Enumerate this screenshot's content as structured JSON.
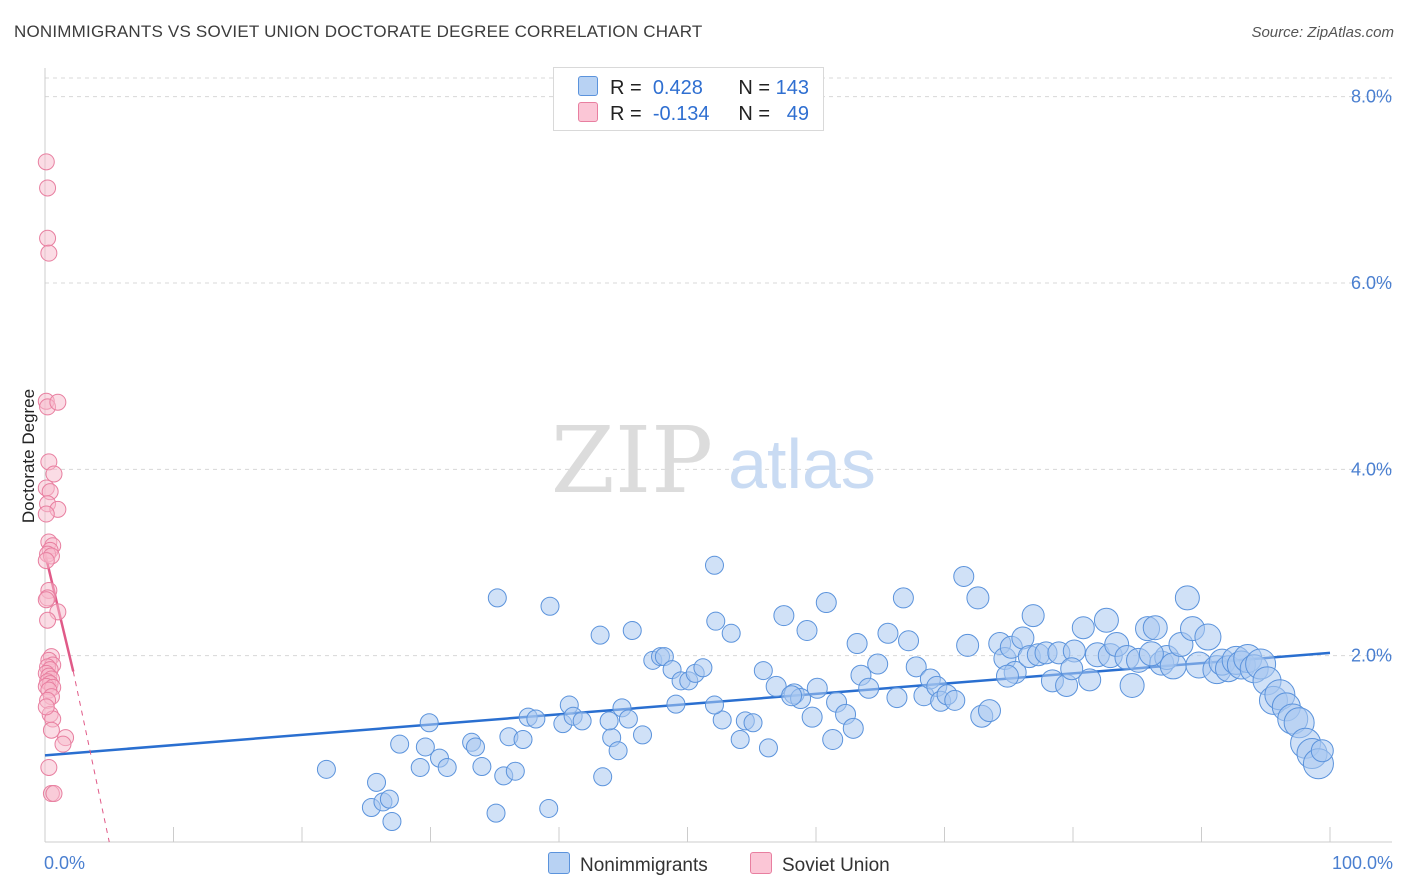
{
  "title": "NONIMMIGRANTS VS SOVIET UNION DOCTORATE DEGREE CORRELATION CHART",
  "source": "Source: ZipAtlas.com",
  "watermark": {
    "zip": "ZIP",
    "atlas": "atlas"
  },
  "legend": {
    "rows": [
      {
        "r_label": "R =",
        "r_value": "0.428",
        "n_label": "N =",
        "n_value": "143"
      },
      {
        "r_label": "R =",
        "r_value": "-0.134",
        "n_label": "N =",
        "n_value": "49"
      }
    ]
  },
  "bottom_legend": {
    "series_a": "Nonimmigrants",
    "series_b": "Soviet Union"
  },
  "colors": {
    "blue_fill": "#a9c8f0",
    "blue_stroke": "#5b93dc",
    "blue_line": "#2a6fd0",
    "pink_fill": "#f7b9cc",
    "pink_stroke": "#e87fa0",
    "pink_line": "#e05a88",
    "grid": "#d8d8d8",
    "axis_text": "#4a7fd0"
  },
  "chart_data": {
    "type": "scatter",
    "title": "NONIMMIGRANTS VS SOVIET UNION DOCTORATE DEGREE CORRELATION CHART",
    "xlabel": "",
    "ylabel": "Doctorate Degree",
    "xlim": [
      0,
      100
    ],
    "ylim": [
      0,
      8.2
    ],
    "x_tick_labels": [
      "0.0%",
      "100.0%"
    ],
    "y_ticks": [
      2,
      4,
      6,
      8
    ],
    "y_tick_labels": [
      "2.0%",
      "4.0%",
      "6.0%",
      "8.0%"
    ],
    "series": [
      {
        "name": "Nonimmigrants",
        "r": 0.428,
        "n": 143,
        "trend": [
          [
            0,
            0.93
          ],
          [
            100,
            2.03
          ]
        ],
        "points": [
          [
            21.9,
            0.78,
            9
          ],
          [
            25.4,
            0.37,
            9
          ],
          [
            25.8,
            0.64,
            9
          ],
          [
            26.3,
            0.43,
            9
          ],
          [
            26.8,
            0.46,
            9
          ],
          [
            27,
            0.22,
            9
          ],
          [
            27.6,
            1.05,
            9
          ],
          [
            29.2,
            0.8,
            9
          ],
          [
            29.6,
            1.02,
            9
          ],
          [
            29.9,
            1.28,
            9
          ],
          [
            30.7,
            0.9,
            9
          ],
          [
            31.3,
            0.8,
            9
          ],
          [
            33.2,
            1.07,
            9
          ],
          [
            34,
            0.81,
            9
          ],
          [
            35.1,
            0.31,
            9
          ],
          [
            35.2,
            2.62,
            9
          ],
          [
            35.7,
            0.71,
            9
          ],
          [
            36.1,
            1.13,
            9
          ],
          [
            36.6,
            0.76,
            9
          ],
          [
            37.2,
            1.1,
            9
          ],
          [
            37.6,
            1.34,
            9
          ],
          [
            38.2,
            1.32,
            9
          ],
          [
            39.2,
            0.36,
            9
          ],
          [
            39.3,
            2.53,
            9
          ],
          [
            40.3,
            1.27,
            9
          ],
          [
            40.8,
            1.47,
            9
          ],
          [
            41.1,
            1.35,
            9
          ],
          [
            41.8,
            1.3,
            9
          ],
          [
            43.2,
            2.22,
            9
          ],
          [
            43.4,
            0.7,
            9
          ],
          [
            44.1,
            1.12,
            9
          ],
          [
            44.6,
            0.98,
            9
          ],
          [
            44.9,
            1.44,
            9
          ],
          [
            45.4,
            1.32,
            9
          ],
          [
            45.7,
            2.27,
            9
          ],
          [
            46.5,
            1.15,
            9
          ],
          [
            47.3,
            1.95,
            9
          ],
          [
            47.9,
            1.99,
            9
          ],
          [
            48.2,
            1.99,
            9
          ],
          [
            48.8,
            1.85,
            9
          ],
          [
            49.1,
            1.48,
            9
          ],
          [
            49.5,
            1.73,
            9
          ],
          [
            50.1,
            1.73,
            9
          ],
          [
            50.6,
            1.81,
            9
          ],
          [
            51.2,
            1.87,
            9
          ],
          [
            52.1,
            2.97,
            9
          ],
          [
            52.2,
            2.37,
            9
          ],
          [
            52.7,
            1.31,
            9
          ],
          [
            53.4,
            2.24,
            9
          ],
          [
            54.1,
            1.1,
            9
          ],
          [
            54.5,
            1.3,
            9
          ],
          [
            55.1,
            1.28,
            9
          ],
          [
            55.9,
            1.84,
            9
          ],
          [
            56.3,
            1.01,
            9
          ],
          [
            56.9,
            1.67,
            10
          ],
          [
            57.5,
            2.43,
            10
          ],
          [
            58.3,
            1.59,
            10
          ],
          [
            58.8,
            1.54,
            10
          ],
          [
            59.3,
            2.27,
            10
          ],
          [
            59.7,
            1.34,
            10
          ],
          [
            60.1,
            1.65,
            10
          ],
          [
            60.8,
            2.57,
            10
          ],
          [
            61.3,
            1.1,
            10
          ],
          [
            61.6,
            1.5,
            10
          ],
          [
            62.3,
            1.37,
            10
          ],
          [
            63.2,
            2.13,
            10
          ],
          [
            63.5,
            1.79,
            10
          ],
          [
            64.1,
            1.65,
            10
          ],
          [
            64.8,
            1.91,
            10
          ],
          [
            65.6,
            2.24,
            10
          ],
          [
            66.3,
            1.55,
            10
          ],
          [
            66.8,
            2.62,
            10
          ],
          [
            67.2,
            2.16,
            10
          ],
          [
            67.8,
            1.88,
            10
          ],
          [
            68.4,
            1.57,
            10
          ],
          [
            68.9,
            1.75,
            10
          ],
          [
            69.4,
            1.67,
            10
          ],
          [
            69.7,
            1.51,
            10
          ],
          [
            70.2,
            1.58,
            10
          ],
          [
            70.8,
            1.52,
            10
          ],
          [
            71.5,
            2.85,
            10
          ],
          [
            71.8,
            2.11,
            11
          ],
          [
            72.6,
            2.62,
            11
          ],
          [
            72.9,
            1.35,
            11
          ],
          [
            73.5,
            1.41,
            11
          ],
          [
            74.3,
            2.13,
            11
          ],
          [
            74.7,
            1.97,
            11
          ],
          [
            75.2,
            2.09,
            11
          ],
          [
            75.5,
            1.82,
            11
          ],
          [
            76.1,
            2.19,
            11
          ],
          [
            76.6,
            1.99,
            11
          ],
          [
            76.9,
            2.43,
            11
          ],
          [
            77.3,
            2.01,
            11
          ],
          [
            77.9,
            2.03,
            11
          ],
          [
            78.4,
            1.73,
            11
          ],
          [
            78.9,
            2.03,
            11
          ],
          [
            79.5,
            1.68,
            11
          ],
          [
            80.1,
            2.05,
            11
          ],
          [
            80.8,
            2.3,
            11
          ],
          [
            81.3,
            1.74,
            11
          ],
          [
            81.9,
            2.01,
            12
          ],
          [
            82.6,
            2.38,
            12
          ],
          [
            82.9,
            2.0,
            12
          ],
          [
            83.4,
            2.12,
            12
          ],
          [
            84.2,
            1.98,
            12
          ],
          [
            84.6,
            1.68,
            12
          ],
          [
            85.1,
            1.95,
            12
          ],
          [
            85.8,
            2.29,
            12
          ],
          [
            86.4,
            2.3,
            12
          ],
          [
            86.9,
            1.92,
            12
          ],
          [
            87.3,
            1.98,
            12
          ],
          [
            87.8,
            1.89,
            13
          ],
          [
            88.4,
            2.12,
            12
          ],
          [
            88.9,
            2.62,
            12
          ],
          [
            89.3,
            2.29,
            12
          ],
          [
            89.8,
            1.9,
            13
          ],
          [
            90.5,
            2.2,
            13
          ],
          [
            91.2,
            1.85,
            14
          ],
          [
            91.6,
            1.93,
            13
          ],
          [
            92.1,
            1.86,
            13
          ],
          [
            92.7,
            1.95,
            14
          ],
          [
            93.1,
            1.9,
            14
          ],
          [
            93.6,
            1.97,
            14
          ],
          [
            94.1,
            1.86,
            14
          ],
          [
            94.6,
            1.91,
            15
          ],
          [
            95.1,
            1.73,
            14
          ],
          [
            95.6,
            1.52,
            14
          ],
          [
            96.1,
            1.58,
            15
          ],
          [
            96.6,
            1.45,
            14
          ],
          [
            97.1,
            1.32,
            15
          ],
          [
            97.6,
            1.28,
            15
          ],
          [
            98.1,
            1.06,
            15
          ],
          [
            98.6,
            0.95,
            15
          ],
          [
            99.1,
            0.84,
            15
          ],
          [
            99.4,
            0.98,
            11
          ],
          [
            52.1,
            1.47,
            9
          ],
          [
            33.5,
            1.02,
            9
          ],
          [
            43.9,
            1.3,
            9
          ],
          [
            58.1,
            1.57,
            10
          ],
          [
            62.9,
            1.22,
            10
          ],
          [
            74.9,
            1.78,
            11
          ],
          [
            79.9,
            1.86,
            11
          ],
          [
            86.1,
            2.02,
            12
          ]
        ]
      },
      {
        "name": "Soviet Union",
        "r": -0.134,
        "n": 49,
        "trend": [
          [
            0,
            3.1
          ],
          [
            2.2,
            1.83
          ]
        ],
        "trend_extension": [
          [
            2.2,
            1.83
          ],
          [
            5.0,
            0.0
          ]
        ],
        "points": [
          [
            0.1,
            7.3
          ],
          [
            0.2,
            7.02
          ],
          [
            0.2,
            6.48
          ],
          [
            0.3,
            6.32
          ],
          [
            0.1,
            4.73
          ],
          [
            0.2,
            4.67
          ],
          [
            1.0,
            4.72
          ],
          [
            0.3,
            4.08
          ],
          [
            0.7,
            3.95
          ],
          [
            0.1,
            3.8
          ],
          [
            0.4,
            3.76
          ],
          [
            0.2,
            3.63
          ],
          [
            1.0,
            3.57
          ],
          [
            0.1,
            3.52
          ],
          [
            0.3,
            3.22
          ],
          [
            0.6,
            3.18
          ],
          [
            0.4,
            3.13
          ],
          [
            0.2,
            3.09
          ],
          [
            0.5,
            3.07
          ],
          [
            0.1,
            3.02
          ],
          [
            0.3,
            2.7
          ],
          [
            0.2,
            2.62
          ],
          [
            0.1,
            2.6
          ],
          [
            1.0,
            2.47
          ],
          [
            0.2,
            2.38
          ],
          [
            0.5,
            1.99
          ],
          [
            0.3,
            1.95
          ],
          [
            0.6,
            1.9
          ],
          [
            0.2,
            1.88
          ],
          [
            0.4,
            1.85
          ],
          [
            0.1,
            1.81
          ],
          [
            0.3,
            1.78
          ],
          [
            0.5,
            1.75
          ],
          [
            0.2,
            1.72
          ],
          [
            0.4,
            1.7
          ],
          [
            0.1,
            1.67
          ],
          [
            0.6,
            1.66
          ],
          [
            0.3,
            1.63
          ],
          [
            0.5,
            1.56
          ],
          [
            0.2,
            1.52
          ],
          [
            0.4,
            1.37
          ],
          [
            0.6,
            1.32
          ],
          [
            0.5,
            1.2
          ],
          [
            1.6,
            1.12
          ],
          [
            1.4,
            1.05
          ],
          [
            0.3,
            0.8
          ],
          [
            0.5,
            0.52
          ],
          [
            0.7,
            0.52
          ],
          [
            0.1,
            1.45
          ]
        ]
      }
    ]
  }
}
